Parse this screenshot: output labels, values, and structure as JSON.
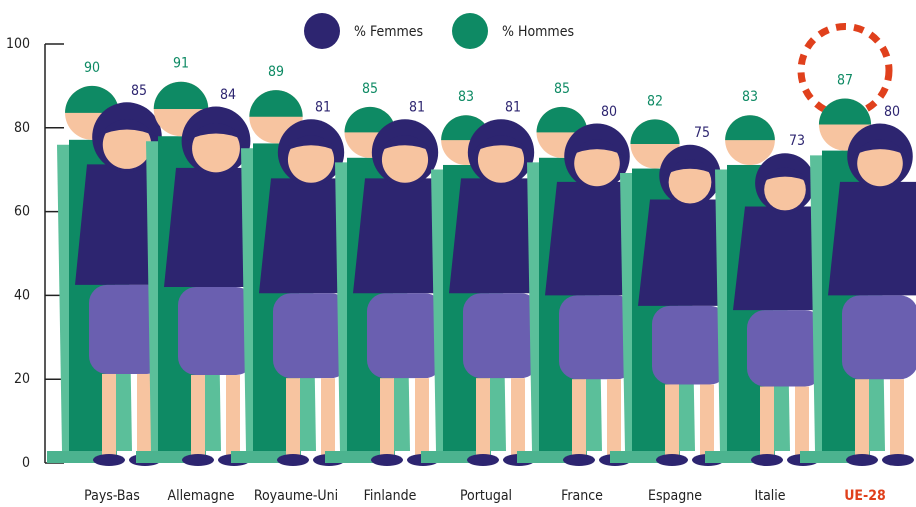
{
  "chart_data": {
    "type": "pictogram",
    "categories": [
      "Pays-Bas",
      "Allemagne",
      "Royaume-Uni",
      "Finlande",
      "Portugal",
      "France",
      "Espagne",
      "Italie",
      "UE-28"
    ],
    "series": [
      {
        "name": "% Femmes",
        "color": "#2d2570",
        "values": [
          85,
          84,
          81,
          81,
          81,
          80,
          75,
          73,
          80
        ]
      },
      {
        "name": "% Hommes",
        "color": "#0e8a64",
        "values": [
          90,
          91,
          89,
          85,
          83,
          85,
          82,
          83,
          87
        ]
      }
    ],
    "ylim": [
      0,
      100
    ],
    "yticks": [
      0,
      20,
      40,
      60,
      80,
      100
    ],
    "highlight": "UE-28",
    "highlight_color": "#e0401c"
  }
}
